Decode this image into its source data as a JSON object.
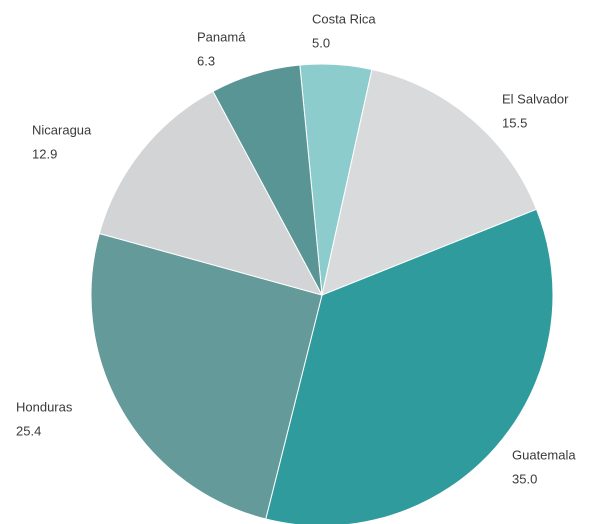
{
  "chart_data": {
    "type": "pie",
    "categories": [
      "Costa Rica",
      "El Salvador",
      "Guatemala",
      "Honduras",
      "Nicaragua",
      "Panamá"
    ],
    "values": [
      5.0,
      15.5,
      35.0,
      25.4,
      12.9,
      6.3
    ],
    "value_labels": [
      "5.0",
      "15.5",
      "35.0",
      "25.4",
      "12.9",
      "6.3"
    ],
    "colors": [
      "#8ccccc",
      "#d9dadc",
      "#2f9b9d",
      "#649a9a",
      "#d3d4d6",
      "#5a9595"
    ]
  }
}
